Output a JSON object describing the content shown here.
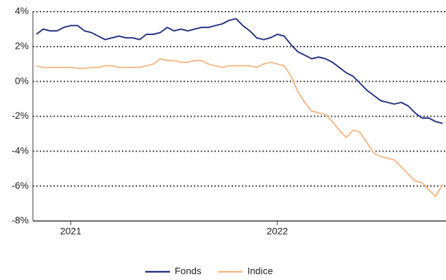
{
  "chart_data": {
    "type": "line",
    "categories": [
      null,
      null,
      null,
      null,
      null,
      "2021",
      null,
      null,
      null,
      null,
      null,
      null,
      null,
      null,
      null,
      null,
      null,
      null,
      null,
      null,
      null,
      null,
      null,
      null,
      null,
      null,
      null,
      null,
      null,
      null,
      null,
      null,
      null,
      null,
      null,
      "2022",
      null,
      null,
      null,
      null,
      null,
      null,
      null,
      null,
      null,
      null,
      null,
      null,
      null,
      null,
      null,
      null,
      null,
      null,
      null,
      null,
      null,
      null,
      null,
      null
    ],
    "series": [
      {
        "name": "Fonds",
        "color": "#25337f",
        "values": [
          2.7,
          3.0,
          2.9,
          2.9,
          3.1,
          3.2,
          3.2,
          2.9,
          2.8,
          2.6,
          2.4,
          2.5,
          2.6,
          2.5,
          2.5,
          2.4,
          2.7,
          2.7,
          2.8,
          3.1,
          2.9,
          3.0,
          2.9,
          3.0,
          3.1,
          3.1,
          3.2,
          3.3,
          3.5,
          3.6,
          3.2,
          2.9,
          2.5,
          2.4,
          2.5,
          2.7,
          2.6,
          2.1,
          1.7,
          1.5,
          1.3,
          1.4,
          1.3,
          1.1,
          0.8,
          0.5,
          0.3,
          -0.1,
          -0.5,
          -0.8,
          -1.1,
          -1.2,
          -1.3,
          -1.2,
          -1.4,
          -1.8,
          -2.1,
          -2.1,
          -2.3,
          -2.4
        ]
      },
      {
        "name": "Indice",
        "color": "#f4b98c",
        "values": [
          0.9,
          0.8,
          0.8,
          0.8,
          0.8,
          0.8,
          0.75,
          0.75,
          0.8,
          0.8,
          0.9,
          0.9,
          0.8,
          0.8,
          0.8,
          0.8,
          0.9,
          1.0,
          1.3,
          1.2,
          1.2,
          1.1,
          1.1,
          1.2,
          1.2,
          1.0,
          0.9,
          0.8,
          0.9,
          0.9,
          0.9,
          0.9,
          0.8,
          1.0,
          1.1,
          1.0,
          0.9,
          0.3,
          -0.6,
          -1.2,
          -1.7,
          -1.8,
          -1.9,
          -2.3,
          -2.8,
          -3.2,
          -2.8,
          -2.9,
          -3.5,
          -4.1,
          -4.3,
          -4.4,
          -4.5,
          -4.9,
          -5.3,
          -5.7,
          -5.8,
          -6.2,
          -6.6,
          -5.9
        ]
      }
    ],
    "ylim": [
      -8,
      4
    ],
    "yticks": [
      {
        "value": -8,
        "label": "-8%"
      },
      {
        "value": -6,
        "label": "-6%"
      },
      {
        "value": -4,
        "label": "-4%"
      },
      {
        "value": -2,
        "label": "-2%"
      },
      {
        "value": 0,
        "label": "0%"
      },
      {
        "value": 2,
        "label": "2%"
      },
      {
        "value": 4,
        "label": "4%"
      }
    ],
    "grid": true,
    "legend": "bottom"
  }
}
